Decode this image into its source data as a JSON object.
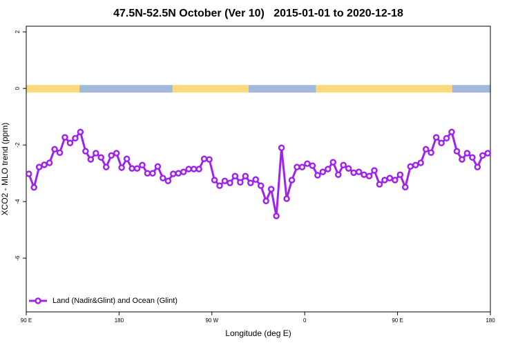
{
  "chart_data": {
    "type": "line",
    "title": "47.5N-52.5N October (Ver 10)   2015-01-01 to 2020-12-18",
    "xlabel": "Longitude (deg E)",
    "ylabel": "XCO2 - MLO trend (ppm)",
    "xlim": [
      90,
      540
    ],
    "ylim": [
      -7.9,
      2.2
    ],
    "xticks": [
      {
        "value": 90,
        "label": "90 E"
      },
      180,
      {
        "value": 270,
        "label": "90 W"
      },
      {
        "value": 360,
        "label": "0"
      },
      {
        "value": 450,
        "label": "90 E"
      },
      {
        "value": 540,
        "label": "180"
      }
    ],
    "yticks": [
      2,
      0,
      -2,
      -4,
      -6
    ],
    "grid": false,
    "legend": "bottom-left",
    "surface_bands": [
      {
        "x0": 90,
        "x1": 141.6,
        "color": "#fcd97a"
      },
      {
        "x0": 141.6,
        "x1": 231.9,
        "color": "#a3b9dc"
      },
      {
        "x0": 231.9,
        "x1": 305.6,
        "color": "#fcd97a"
      },
      {
        "x0": 305.6,
        "x1": 371,
        "color": "#a3b9dc"
      },
      {
        "x0": 371,
        "x1": 503,
        "color": "#fcd97a"
      },
      {
        "x0": 503,
        "x1": 540,
        "color": "#a3b9dc"
      }
    ],
    "series": [
      {
        "name": "Land (Nadir&Glint) and Ocean (Glint)",
        "color": "#a020f0",
        "x": [
          92.5,
          97.5,
          102.5,
          107.5,
          112.5,
          117.5,
          122.5,
          127.5,
          132.5,
          137.5,
          142.5,
          147.5,
          152.5,
          157.5,
          162.5,
          167.5,
          172.5,
          177.5,
          182.5,
          187.5,
          192.5,
          197.5,
          202.5,
          207.5,
          212.5,
          217.5,
          222.5,
          227.5,
          232.5,
          237.5,
          242.5,
          247.5,
          252.5,
          257.5,
          262.5,
          267.5,
          272.5,
          277.5,
          282.5,
          287.5,
          292.5,
          297.5,
          302.5,
          307.5,
          312.5,
          317.5,
          322.5,
          327.5,
          332.5,
          337.5,
          342.5,
          347.5,
          352.5,
          357.5,
          362.5,
          367.5,
          372.5,
          377.5,
          382.5,
          387.5,
          392.5,
          397.5,
          402.5,
          407.5,
          412.5,
          417.5,
          422.5,
          427.5,
          432.5,
          437.5,
          442.5,
          447.5,
          452.5,
          457.5,
          462.5,
          467.5,
          472.5,
          477.5,
          482.5,
          487.5,
          492.5,
          497.5,
          502.5,
          507.5,
          512.5,
          517.5,
          522.5,
          527.5,
          532.5,
          537.5
        ],
        "values": [
          -3.02,
          -3.5,
          -2.78,
          -2.7,
          -2.63,
          -2.15,
          -2.27,
          -1.73,
          -1.93,
          -1.76,
          -1.54,
          -2.22,
          -2.51,
          -2.29,
          -2.44,
          -2.78,
          -2.37,
          -2.29,
          -2.8,
          -2.49,
          -2.83,
          -2.83,
          -2.71,
          -3.0,
          -3.0,
          -2.76,
          -3.17,
          -3.27,
          -3.02,
          -3.0,
          -2.95,
          -2.85,
          -2.85,
          -2.85,
          -2.49,
          -2.51,
          -3.24,
          -3.44,
          -3.27,
          -3.34,
          -3.1,
          -3.32,
          -3.1,
          -3.34,
          -3.22,
          -3.44,
          -3.98,
          -3.56,
          -4.51,
          -2.1,
          -3.9,
          -3.24,
          -2.78,
          -2.78,
          -2.66,
          -2.73,
          -3.07,
          -2.95,
          -2.85,
          -2.61,
          -3.05,
          -2.71,
          -2.83,
          -2.98,
          -2.95,
          -3.05,
          -3.1,
          -2.9,
          -3.39,
          -3.24,
          -3.17,
          -3.24,
          -3.05,
          -3.49,
          -2.76,
          -2.71,
          -2.63,
          -2.15,
          -2.27,
          -1.73,
          -1.93,
          -1.76,
          -1.54,
          -2.22,
          -2.51,
          -2.29,
          -2.44,
          -2.78,
          -2.37,
          -2.29
        ]
      }
    ]
  }
}
